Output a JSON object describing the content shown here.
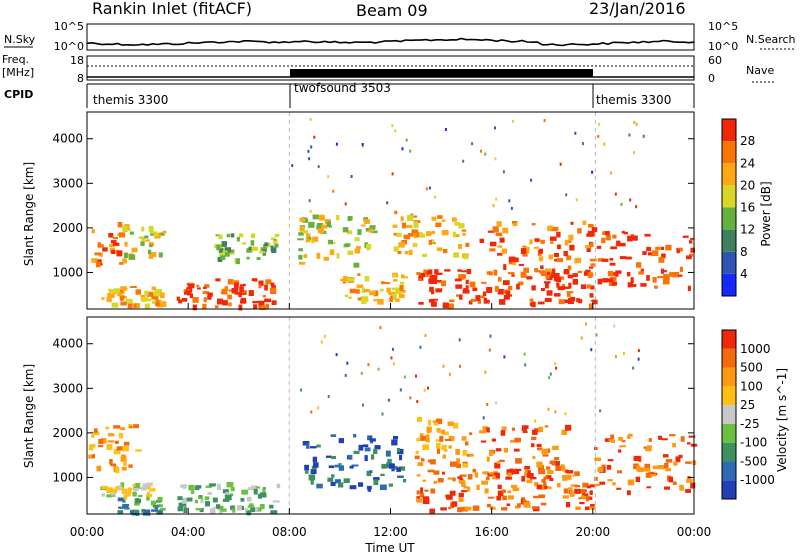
{
  "header": {
    "site": "Rankin Inlet (fitACF)",
    "beam": "Beam 09",
    "date": "23/Jan/2016"
  },
  "noise_panel": {
    "left_label": "N.Sky",
    "right_label": "N.Search",
    "left_ticks": [
      "10^5",
      "10^0"
    ],
    "right_ticks": [
      "10^5",
      "10^0"
    ]
  },
  "freq_panel": {
    "left_label_1": "Freq.",
    "left_label_2": "[MHz]",
    "left_ticks": [
      "18",
      "8"
    ],
    "right_label": "Nave",
    "right_ticks": [
      "60",
      "0"
    ]
  },
  "cpid_panel": {
    "label": "CPID",
    "modes": [
      {
        "name": "themis 3300",
        "start_hour": 0,
        "end_hour": 8.0
      },
      {
        "name": "twofsound 3503",
        "start_hour": 8.0,
        "end_hour": 20.1
      },
      {
        "name": "themis 3300",
        "start_hour": 20.1,
        "end_hour": 24
      }
    ]
  },
  "power_panel": {
    "ylabel": "Slant Range [km]",
    "yticks": [
      "1000",
      "2000",
      "3000",
      "4000"
    ],
    "colorbar_label": "Power [dB]",
    "colorbar_ticks": [
      "4",
      "8",
      "12",
      "16",
      "20",
      "24",
      "28"
    ],
    "colors": [
      "#1528ff",
      "#2c55b4",
      "#3f8060",
      "#64b040",
      "#d7d825",
      "#ffa814",
      "#fb7406",
      "#f02808"
    ]
  },
  "velocity_panel": {
    "ylabel": "Slant Range [km]",
    "yticks": [
      "1000",
      "2000",
      "3000",
      "4000"
    ],
    "colorbar_label": "Velocity [m s^-1]",
    "colorbar_ticks": [
      "1000",
      "500",
      "100",
      "25",
      "-25",
      "-100",
      "-500",
      "-1000"
    ],
    "colors": [
      "#2040b8",
      "#2c6cb0",
      "#3e9060",
      "#6ac040",
      "#c8c8c8",
      "#ffbf14",
      "#ff9a10",
      "#f46a0a",
      "#ef2808"
    ]
  },
  "x_axis": {
    "label": "Time UT",
    "ticks": [
      "00:00",
      "04:00",
      "08:00",
      "12:00",
      "16:00",
      "20:00",
      "00:00"
    ]
  },
  "chart_data": {
    "type": "heatmap",
    "x_range_hours": [
      0,
      24
    ],
    "y_range_km": [
      180,
      4600
    ],
    "power_echo_regions": [
      {
        "t0": 0.0,
        "t1": 1.3,
        "r0": 1200,
        "r1": 2200,
        "level": 6
      },
      {
        "t0": 1.3,
        "t1": 3.0,
        "r0": 1300,
        "r1": 2100,
        "level": 4
      },
      {
        "t0": 0.5,
        "t1": 3.0,
        "r0": 300,
        "r1": 700,
        "level": 5
      },
      {
        "t0": 3.5,
        "t1": 7.4,
        "r0": 250,
        "r1": 900,
        "level": 7
      },
      {
        "t0": 5.0,
        "t1": 7.5,
        "r0": 1300,
        "r1": 1900,
        "level": 3
      },
      {
        "t0": 8.3,
        "t1": 11.5,
        "r0": 1200,
        "r1": 2300,
        "level": 4
      },
      {
        "t0": 10.0,
        "t1": 12.5,
        "r0": 400,
        "r1": 1000,
        "level": 5
      },
      {
        "t0": 12.0,
        "t1": 15.0,
        "r0": 1400,
        "r1": 2400,
        "level": 5
      },
      {
        "t0": 13.0,
        "t1": 20.0,
        "r0": 300,
        "r1": 1100,
        "level": 7
      },
      {
        "t0": 15.5,
        "t1": 20.0,
        "r0": 1000,
        "r1": 2200,
        "level": 6
      },
      {
        "t0": 20.0,
        "t1": 24.0,
        "r0": 700,
        "r1": 2000,
        "level": 7
      }
    ],
    "velocity_echo_regions": [
      {
        "t0": 0.0,
        "t1": 2.0,
        "r0": 1200,
        "r1": 2200,
        "level": 6
      },
      {
        "t0": 1.2,
        "t1": 3.0,
        "r0": 200,
        "r1": 600,
        "level": 2
      },
      {
        "t0": 0.5,
        "t1": 2.5,
        "r0": 600,
        "r1": 900,
        "level": 4
      },
      {
        "t0": 3.5,
        "t1": 7.5,
        "r0": 250,
        "r1": 900,
        "level": 3
      },
      {
        "t0": 8.5,
        "t1": 12.5,
        "r0": 800,
        "r1": 2000,
        "level": 1
      },
      {
        "t0": 12.5,
        "t1": 15.0,
        "r0": 1300,
        "r1": 2400,
        "level": 6
      },
      {
        "t0": 13.0,
        "t1": 20.0,
        "r0": 300,
        "r1": 1200,
        "level": 7
      },
      {
        "t0": 15.0,
        "t1": 19.0,
        "r0": 1000,
        "r1": 2200,
        "level": 7
      },
      {
        "t0": 20.0,
        "t1": 24.0,
        "r0": 700,
        "r1": 2000,
        "level": 7
      }
    ]
  }
}
